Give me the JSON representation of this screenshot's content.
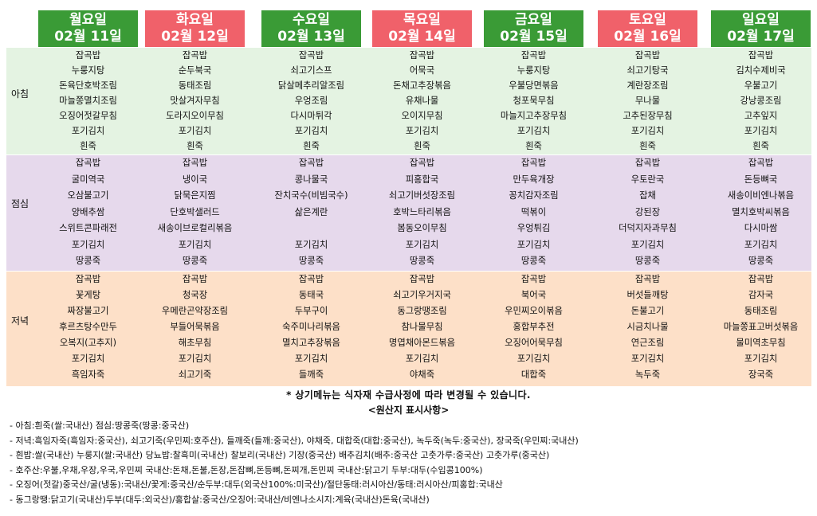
{
  "colors": {
    "green": "#3a9b36",
    "red": "#f0616a",
    "breakfast_bg": "#e4f3e2",
    "lunch_bg": "#e6d9ec",
    "dinner_bg": "#fde0c8"
  },
  "meal_labels": [
    "아침",
    "점심",
    "저녁"
  ],
  "days": [
    {
      "name": "월요일",
      "date": "02월 11일",
      "color": "green",
      "breakfast": [
        "잡곡밥",
        "누룽지탕",
        "돈육단호박조림",
        "마늘쫑멸치조림",
        "오징어젓갈무침",
        "포기김치",
        "흰죽"
      ],
      "lunch": [
        "잡곡밥",
        "굴미역국",
        "오삼불고기",
        "양배추쌈",
        "스위트콘파래전",
        "포기김치",
        "땅콩죽"
      ],
      "dinner": [
        "잡곡밥",
        "꽃게탕",
        "짜장불고기",
        "후르츠탕수만두",
        "오복지(고추지)",
        "포기김치",
        "흑임자죽"
      ]
    },
    {
      "name": "화요일",
      "date": "02월 12일",
      "color": "red",
      "breakfast": [
        "잡곡밥",
        "순두북국",
        "동태조림",
        "맛살겨자무침",
        "도라지오이무침",
        "포기김치",
        "흰죽"
      ],
      "lunch": [
        "잡곡밥",
        "냉이국",
        "닭묵은지찜",
        "단호박샐러드",
        "새송이브로컬리볶음",
        "포기김치",
        "땅콩죽"
      ],
      "dinner": [
        "잡곡밥",
        "청국장",
        "우메란곤약장조림",
        "부들어묵볶음",
        "해초무침",
        "포기김치",
        "쇠고기죽"
      ]
    },
    {
      "name": "수요일",
      "date": "02월 13일",
      "color": "green",
      "breakfast": [
        "잡곡밥",
        "쇠고기스프",
        "닭살메추리알조림",
        "우엉조림",
        "다시마튀각",
        "포기김치",
        "흰죽"
      ],
      "lunch": [
        "잡곡밥",
        "콩나물국",
        "잔치국수(비빔국수)",
        "삶은계란",
        "",
        "포기김치",
        "땅콩죽"
      ],
      "dinner": [
        "잡곡밥",
        "동태국",
        "두부구이",
        "숙주미나리볶음",
        "멸치고추장볶음",
        "포기김치",
        "들깨죽"
      ]
    },
    {
      "name": "목요일",
      "date": "02월 14일",
      "color": "red",
      "breakfast": [
        "잡곡밥",
        "어묵국",
        "돈채고추장볶음",
        "유채나물",
        "오이지무침",
        "포기김치",
        "흰죽"
      ],
      "lunch": [
        "잡곡밥",
        "피홍합국",
        "쇠고기버섯장조림",
        "호박느타리볶음",
        "봄동오이무침",
        "포기김치",
        "땅콩죽"
      ],
      "dinner": [
        "잡곡밥",
        "쇠고기우거지국",
        "동그랑땡조림",
        "참나물무침",
        "명엽채아몬드볶음",
        "포기김치",
        "야채죽"
      ]
    },
    {
      "name": "금요일",
      "date": "02월 15일",
      "color": "green",
      "breakfast": [
        "잡곡밥",
        "누룽지탕",
        "우불당면볶음",
        "청포묵무침",
        "마늘지고추장무침",
        "포기김치",
        "흰죽"
      ],
      "lunch": [
        "잡곡밥",
        "만두육개장",
        "꽁치감자조림",
        "떡볶이",
        "우엉튀김",
        "포기김치",
        "땅콩죽"
      ],
      "dinner": [
        "잡곡밥",
        "북어국",
        "우민찌오이볶음",
        "홍합부추전",
        "오징어어묵무침",
        "포기김치",
        "대합죽"
      ]
    },
    {
      "name": "토요일",
      "date": "02월 16일",
      "color": "red",
      "breakfast": [
        "잡곡밥",
        "쇠고기탕국",
        "계란장조림",
        "무나물",
        "고추된장무침",
        "포기김치",
        "흰죽"
      ],
      "lunch": [
        "잡곡밥",
        "우토란국",
        "잡채",
        "강된장",
        "더덕지자과무침",
        "포기김치",
        "땅콩죽"
      ],
      "dinner": [
        "잡곡밥",
        "버섯들깨탕",
        "돈불고기",
        "시금치나물",
        "연근조림",
        "포기김치",
        "녹두죽"
      ]
    },
    {
      "name": "일요일",
      "date": "02월 17일",
      "color": "green",
      "breakfast": [
        "잡곡밥",
        "김치수제비국",
        "우불고기",
        "강낭콩조림",
        "고추잎지",
        "포기김치",
        "흰죽"
      ],
      "lunch": [
        "잡곡밥",
        "돈등뼈국",
        "새송이비엔나볶음",
        "멸치호박씨볶음",
        "다시마쌈",
        "포기김치",
        "땅콩죽"
      ],
      "dinner": [
        "잡곡밥",
        "감자국",
        "동태조림",
        "마늘쫑표고버섯볶음",
        "물미역초무침",
        "포기김치",
        "장국죽"
      ]
    }
  ],
  "notice": "* 상기메뉴는 식자재 수급사정에 따라 변경될 수 있습니다.",
  "origin_title": "<원산지 표시사항>",
  "origin_lines": [
    "- 아침:흰죽(쌀:국내산) 점심:땅콩죽(땅콩:중국산)",
    "- 저녁:흑임자죽(흑임자:중국산), 쇠고기죽(우민찌:호주산), 들깨죽(들깨:중국산), 야채죽, 대합죽(대합:중국산), 녹두죽(녹두:중국산), 장국죽(우민찌:국내산)",
    "- 흰밥:쌀(국내산) 누룽지(쌀:국내산) 당뇨밥:찰흑미(국내산) 찰보리(국내산) 기장(중국산) 배추김치(배추:중국산 고춧가루:중국산) 고춧가루(중국산)",
    "- 호주산:우불,우채,우장,우국,우민찌 국내산:돈채,돈불,돈장,돈잡뼈,돈등뼈,돈찌개,돈민찌 국내산:닭고기 두부:대두(수입콩100%)",
    "- 오징어(젓갈)중국산/굴(냉동):국내산/꽃게:중국산/순두부:대두(외국산100%:미국산)/절단동태:러시아산/동태:러시아산/피홍합:국내산",
    "- 동그랑땡:닭고기(국내산)두부(대두:외국산)/홍합살:중국산/오징어:국내산/비엔나소시지:계육(국내산)돈육(국내산)"
  ]
}
